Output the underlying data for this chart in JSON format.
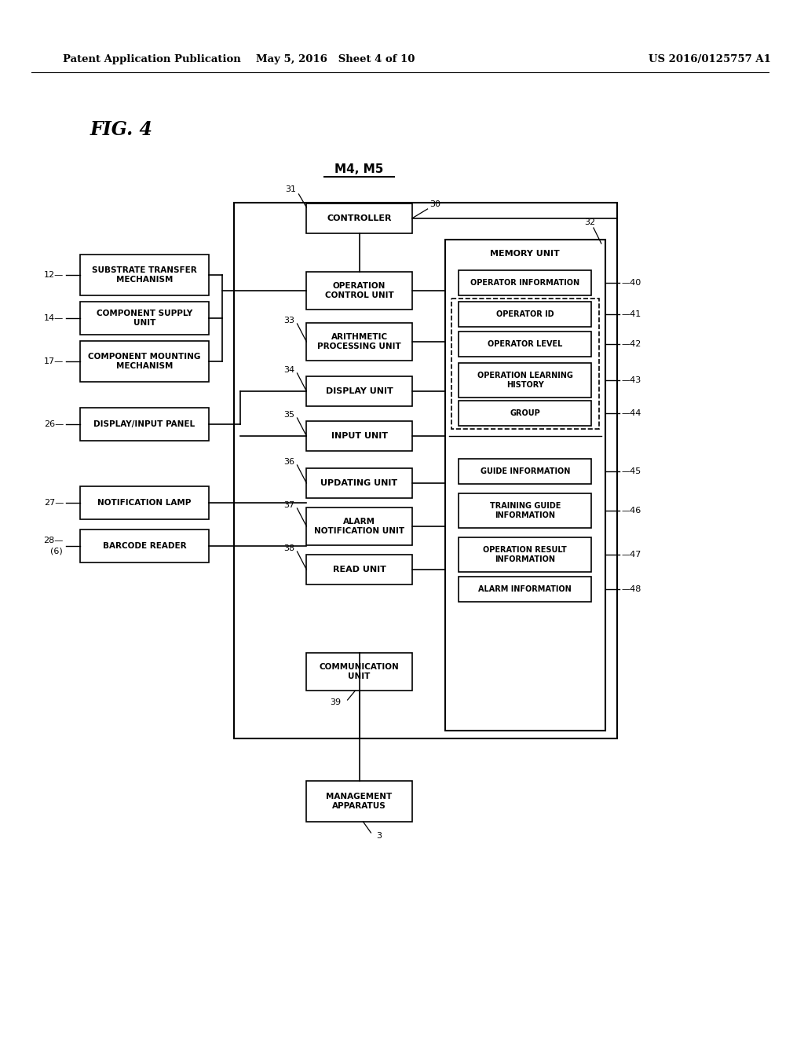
{
  "bg_color": "#ffffff",
  "header_left": "Patent Application Publication",
  "header_mid": "May 5, 2016   Sheet 4 of 10",
  "header_right": "US 2016/0125757 A1",
  "fig_label": "FIG. 4",
  "fig_sublabel": "M4, M5"
}
